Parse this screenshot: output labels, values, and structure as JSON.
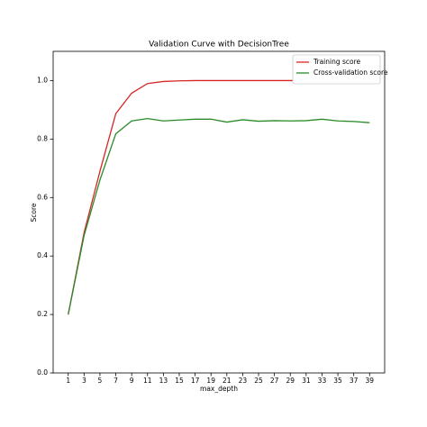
{
  "chart_data": {
    "type": "line",
    "title": "Validation Curve with DecisionTree",
    "x_label": "max_depth",
    "y_label": "Score",
    "x": [
      1,
      3,
      5,
      7,
      9,
      11,
      13,
      15,
      17,
      19,
      21,
      23,
      25,
      27,
      29,
      31,
      33,
      35,
      37,
      39
    ],
    "series": [
      {
        "name": "Training score",
        "color": "#d62728",
        "values": [
          0.2,
          0.48,
          0.69,
          0.887,
          0.957,
          0.99,
          0.997,
          0.999,
          1.0,
          1.0,
          1.0,
          1.0,
          1.0,
          1.0,
          1.0,
          1.0,
          1.0,
          1.0,
          1.0,
          1.0
        ]
      },
      {
        "name": "Cross-validation score",
        "color": "#2a8a2a",
        "values": [
          0.2,
          0.47,
          0.66,
          0.818,
          0.862,
          0.87,
          0.862,
          0.865,
          0.868,
          0.868,
          0.858,
          0.866,
          0.861,
          0.863,
          0.862,
          0.863,
          0.868,
          0.862,
          0.86,
          0.856
        ]
      }
    ],
    "xlim": [
      -0.9,
      40.9
    ],
    "xticks": [
      1,
      3,
      5,
      7,
      9,
      11,
      13,
      15,
      17,
      19,
      21,
      23,
      25,
      27,
      29,
      31,
      33,
      35,
      37,
      39
    ],
    "ylim": [
      0,
      1.1
    ],
    "yticks": [
      {
        "value": 0,
        "label": "0.0"
      },
      0.2,
      0.4,
      0.6,
      0.8,
      {
        "value": 1,
        "label": "1.0"
      }
    ],
    "legend": "upper right"
  }
}
